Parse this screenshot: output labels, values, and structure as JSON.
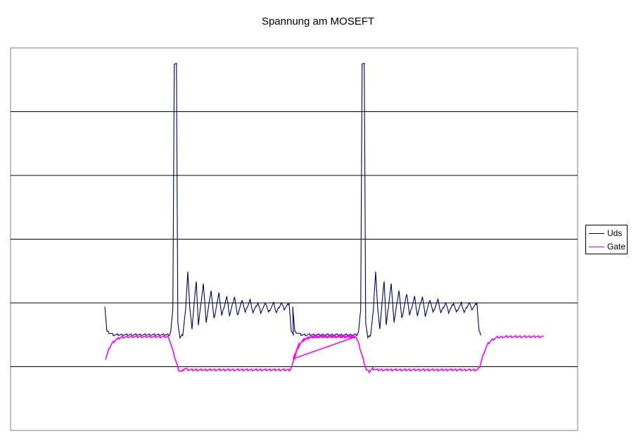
{
  "chart_data": {
    "type": "line",
    "title": "Spannung am MOSEFT",
    "xlabel": "",
    "ylabel": "",
    "grid": true,
    "legend_position": "right",
    "xlim": [
      0,
      800
    ],
    "ylim": [
      0,
      6
    ],
    "period": 265,
    "series": [
      {
        "name": "Uds",
        "color": "#000066",
        "points": [
          [
            133,
            1.95
          ],
          [
            136,
            1.55
          ],
          [
            145,
            1.5
          ],
          [
            224,
            1.5
          ],
          [
            226,
            1.55
          ],
          [
            229,
            1.9
          ],
          [
            231,
            5.75
          ],
          [
            234,
            5.75
          ],
          [
            236,
            1.7
          ],
          [
            239,
            1.45
          ],
          [
            243,
            1.5
          ],
          [
            247,
            1.9
          ],
          [
            250,
            2.5
          ],
          [
            253,
            1.9
          ],
          [
            256,
            1.6
          ],
          [
            262,
            2.35
          ],
          [
            265,
            1.65
          ],
          [
            272,
            2.3
          ],
          [
            276,
            1.7
          ],
          [
            283,
            2.2
          ],
          [
            287,
            1.75
          ],
          [
            294,
            2.15
          ],
          [
            298,
            1.8
          ],
          [
            305,
            2.1
          ],
          [
            309,
            1.8
          ],
          [
            316,
            2.1
          ],
          [
            320,
            1.8
          ],
          [
            327,
            2.05
          ],
          [
            331,
            1.85
          ],
          [
            338,
            2.05
          ],
          [
            342,
            1.85
          ],
          [
            349,
            2.0
          ],
          [
            353,
            1.85
          ],
          [
            360,
            2.0
          ],
          [
            364,
            1.85
          ],
          [
            371,
            2.0
          ],
          [
            375,
            1.85
          ],
          [
            382,
            2.0
          ],
          [
            386,
            1.9
          ],
          [
            393,
            2.0
          ],
          [
            396,
            1.55
          ],
          [
            399,
            1.5
          ]
        ]
      },
      {
        "name": "Gate",
        "color": "#ff00ff",
        "points": [
          [
            134,
            1.12
          ],
          [
            138,
            1.25
          ],
          [
            142,
            1.35
          ],
          [
            148,
            1.42
          ],
          [
            156,
            1.46
          ],
          [
            170,
            1.47
          ],
          [
            222,
            1.47
          ],
          [
            225,
            1.4
          ],
          [
            229,
            1.25
          ],
          [
            233,
            1.1
          ],
          [
            237,
            0.95
          ],
          [
            241,
            0.92
          ],
          [
            246,
            0.97
          ],
          [
            252,
            0.95
          ],
          [
            394,
            0.95
          ],
          [
            397,
            1.0
          ],
          [
            400,
            1.12
          ],
          [
            404,
            1.25
          ],
          [
            408,
            1.35
          ],
          [
            414,
            1.42
          ],
          [
            422,
            1.46
          ],
          [
            434,
            1.47
          ],
          [
            487,
            1.47
          ]
        ]
      }
    ]
  }
}
